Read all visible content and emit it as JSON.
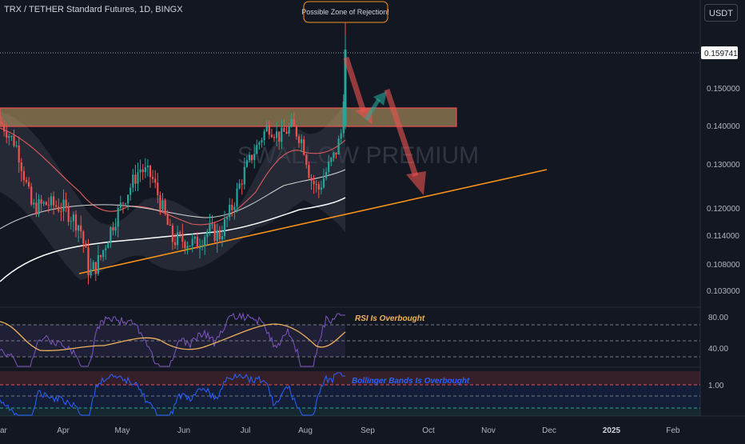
{
  "header": {
    "symbol": "TRX / TETHER Standard Futures, 1D, BINGX",
    "currency_button": "USDT"
  },
  "colors": {
    "up": "#26a69a",
    "down": "#ef5350",
    "orange": "#f7931a",
    "rsi": "#7e57c2",
    "bb_line": "#2962ff",
    "background": "#131722"
  },
  "watermark": "SWALLOW PREMIUM",
  "annotations": {
    "rejection": "Possible Zone of Rejection!",
    "rsi": "RSI Is Overbought",
    "bb": "Bollinger Bands Is Overbought"
  },
  "price_axis": {
    "current_price": "0.159741",
    "ticks": [
      "0.150000",
      "0.140000",
      "0.130000",
      "0.120000",
      "0.114000",
      "0.108000",
      "0.103000"
    ]
  },
  "rsi_axis": {
    "ticks": [
      "80.00",
      "40.00"
    ]
  },
  "bb_axis": {
    "ticks": [
      "1.00"
    ]
  },
  "time_axis": {
    "labels": [
      "ar",
      "Apr",
      "May",
      "Jun",
      "Jul",
      "Aug",
      "Sep",
      "Oct",
      "Nov",
      "Dec",
      "2025",
      "Feb"
    ]
  },
  "chart_data": {
    "type": "candlestick",
    "symbol": "TRX/USDT",
    "timeframe": "1D",
    "last_price": 0.159741,
    "resistance_zone": [
      0.1385,
      0.1435
    ],
    "ascending_trendline": [
      {
        "date": "Apr",
        "price": 0.108
      },
      {
        "date": "Dec",
        "price": 0.129
      }
    ],
    "price_path": [
      {
        "date": "Mar",
        "price": 0.14
      },
      {
        "date": "Apr",
        "price": 0.12
      },
      {
        "date": "Apr",
        "price": 0.105
      },
      {
        "date": "May",
        "price": 0.124
      },
      {
        "date": "Jun",
        "price": 0.115
      },
      {
        "date": "Jul",
        "price": 0.135
      },
      {
        "date": "Jul",
        "price": 0.14
      },
      {
        "date": "Aug",
        "price": 0.12
      },
      {
        "date": "Aug",
        "price": 0.138
      },
      {
        "date": "Aug",
        "price": 0.159741
      }
    ],
    "rsi_levels": [
      80,
      40
    ],
    "bb_percent_level": 1.0
  }
}
